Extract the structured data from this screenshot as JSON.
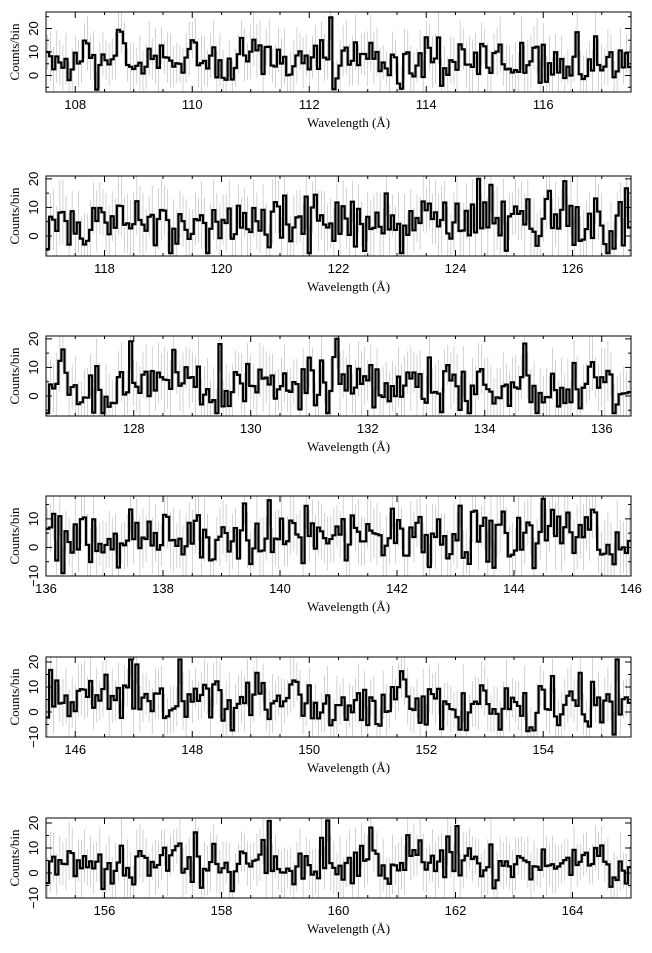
{
  "chart_data": [
    {
      "type": "line",
      "style": "step histogram with error bars",
      "xlabel": "Wavelength (Å)",
      "ylabel": "Counts/bin",
      "xlim": [
        107.5,
        117.5
      ],
      "ylim": [
        -7,
        27
      ],
      "xticks": [
        "108",
        "110",
        "112",
        "114",
        "116"
      ],
      "yticks": [
        "0",
        "10",
        "20"
      ],
      "seed": 11
    },
    {
      "type": "line",
      "style": "step histogram with error bars",
      "xlabel": "Wavelength (Å)",
      "ylabel": "Counts/bin",
      "xlim": [
        117,
        127
      ],
      "ylim": [
        -7,
        21
      ],
      "xticks": [
        "118",
        "120",
        "122",
        "124",
        "126"
      ],
      "yticks": [
        "0",
        "10",
        "20"
      ],
      "seed": 23
    },
    {
      "type": "line",
      "style": "step histogram with error bars",
      "xlabel": "Wavelength (Å)",
      "ylabel": "Counts/bin",
      "xlim": [
        126.5,
        136.5
      ],
      "ylim": [
        -7,
        21
      ],
      "xticks": [
        "128",
        "130",
        "132",
        "134",
        "136"
      ],
      "yticks": [
        "0",
        "10",
        "20"
      ],
      "seed": 37
    },
    {
      "type": "line",
      "style": "step histogram with error bars",
      "xlabel": "Wavelength (Å)",
      "ylabel": "Counts/bin",
      "xlim": [
        136,
        146
      ],
      "ylim": [
        -10,
        18
      ],
      "xticks": [
        "136",
        "138",
        "140",
        "142",
        "144",
        "146"
      ],
      "yticks": [
        "−10",
        "0",
        "10"
      ],
      "seed": 41
    },
    {
      "type": "line",
      "style": "step histogram with error bars",
      "xlabel": "Wavelength (Å)",
      "ylabel": "Counts/bin",
      "xlim": [
        145.5,
        155.5
      ],
      "ylim": [
        -10,
        22
      ],
      "xticks": [
        "146",
        "148",
        "150",
        "152",
        "154"
      ],
      "yticks": [
        "−10",
        "0",
        "10",
        "20"
      ],
      "seed": 53
    },
    {
      "type": "line",
      "style": "step histogram with error bars",
      "xlabel": "Wavelength (Å)",
      "ylabel": "Counts/bin",
      "xlim": [
        155,
        165
      ],
      "ylim": [
        -10,
        22
      ],
      "xticks": [
        "156",
        "158",
        "160",
        "162",
        "164"
      ],
      "yticks": [
        "−10",
        "0",
        "10",
        "20"
      ],
      "seed": 67
    }
  ]
}
